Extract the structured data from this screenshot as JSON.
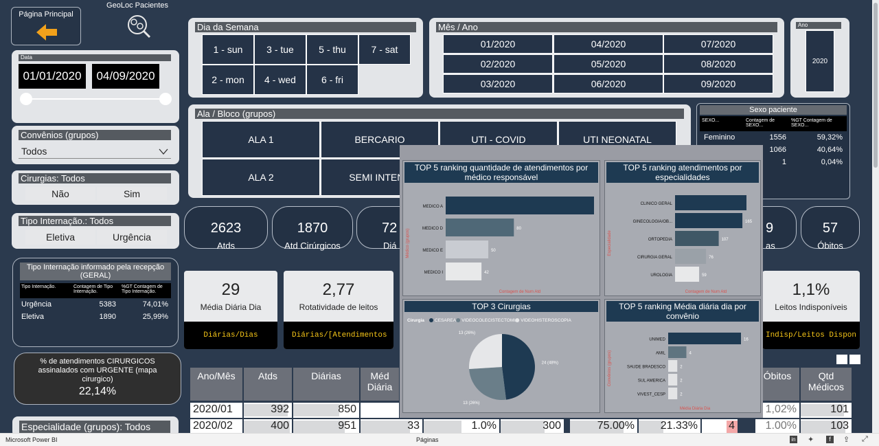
{
  "nav": {
    "home_label": "Página Principal",
    "geoloc_label": "GeoLoc Pacientes"
  },
  "date_filter": {
    "header": "Data",
    "start": "01/01/2020",
    "end": "04/09/2020"
  },
  "convenios": {
    "header": "Convênios (grupos)",
    "value": "Todos"
  },
  "cirurgias": {
    "header": "Cirurgias: Todos",
    "options": [
      "Não",
      "Sim"
    ]
  },
  "tipo_internacao": {
    "header": "Tipo Internação.: Todos",
    "options": [
      "Eletiva",
      "Urgência"
    ]
  },
  "tipo_recepcao": {
    "title": "Tipo Internação informado pela recepção (GERAL)",
    "columns": [
      "Tipo Internação.",
      "Contagem de Tipo Internação.",
      "%GT Contagem de Tipo Internação."
    ],
    "rows": [
      [
        "Urgência",
        "5383",
        "74,01%"
      ],
      [
        "Eletiva",
        "1890",
        "25,99%"
      ]
    ]
  },
  "pct_urgente": {
    "label": "% de atendimentos CIRURGICOS assinalados com URGENTE (mapa cirurgico)",
    "value": "22,14%"
  },
  "especialidade": {
    "header": "Especialidade (grupos): Todos"
  },
  "dia_semana": {
    "header": "Dia da Semana",
    "days": [
      "1 - sun",
      "3 - tue",
      "5 - thu",
      "7 - sat",
      "2 - mon",
      "4 - wed",
      "6 - fri"
    ]
  },
  "mes_ano": {
    "header": "Mês / Ano",
    "months": [
      "01/2020",
      "04/2020",
      "07/2020",
      "02/2020",
      "05/2020",
      "08/2020",
      "03/2020",
      "06/2020",
      "09/2020"
    ]
  },
  "ano": {
    "header": "Ano",
    "value": "2020"
  },
  "ala_bloco": {
    "header": "Ala / Bloco (grupos)",
    "items": [
      "ALA 1",
      "BERCARIO",
      "UTI - COVID",
      "UTI NEONATAL",
      "ALA 2",
      "SEMI INTENS"
    ]
  },
  "sexo": {
    "title": "Sexo paciente",
    "columns": [
      "SEXO...",
      "Contagem de SEXO...",
      "%GT Contagem de SEXO..."
    ],
    "rows": [
      [
        "Feminino",
        "1556",
        "59,32%"
      ],
      [
        "",
        "1066",
        "40,64%"
      ],
      [
        "",
        "1",
        "0,04%"
      ]
    ]
  },
  "kpis": [
    {
      "value": "2623",
      "label": "Atds"
    },
    {
      "value": "1870",
      "label": "Atd Cirúrgicos"
    },
    {
      "value": "72",
      "label": "Diá"
    },
    {
      "value": "9",
      "label": "as"
    },
    {
      "value": "57",
      "label": "Óbitos"
    }
  ],
  "kpis2": [
    {
      "value": "29",
      "label": "Média Diária Dia",
      "code": "Diárias/Dias"
    },
    {
      "value": "2,77",
      "label": "Rotatividade de leitos",
      "code": "Diárias/[Atendimentos"
    },
    {
      "value": "1,1%",
      "label": "Leitos Indisponíveis",
      "code": "Indisp/Leitos Dispon"
    }
  ],
  "grid": {
    "headers": [
      "Ano/Mês",
      "Atds",
      "Diárias",
      "Méd Diária",
      "Óbitos",
      "Qtd Médicos"
    ],
    "rows": [
      {
        "month": "2020/01",
        "atds": "392",
        "diarias": "850",
        "obitos_pct": "1,02%",
        "medicos": "101"
      },
      {
        "month": "2020/02",
        "atds": "400",
        "diarias": "951",
        "c1": "33",
        "c2": "1.0%",
        "c3": "300",
        "c4": "75.00%",
        "c5": "21.33%",
        "c6": "4",
        "obitos_pct": "1.00%",
        "medicos": "103"
      }
    ]
  },
  "chart_data": [
    {
      "type": "bar",
      "title": "TOP 5 ranking quantidade de atendimentos por médico responsável",
      "ylabel": "Médico (grupos)",
      "xlabel": "Contagem de Num Atd",
      "categories": [
        "MEDICO A",
        "MEDICO D",
        "MEDICO E",
        "MEDICO I"
      ],
      "values": [
        174,
        80,
        50,
        42
      ],
      "labels": [
        "",
        "80",
        "50",
        "42"
      ],
      "colors": [
        "#1e3a52",
        "#4f6877",
        "#c9ccd2",
        "#e8e9ea"
      ]
    },
    {
      "type": "bar",
      "title": "TOP 5 ranking atendimentos por especialidades",
      "ylabel": "Especialidade",
      "xlabel": "Contagem de Num Atd",
      "categories": [
        "CLINICO GERAL",
        "GINECOLOGIA/OB...",
        "ORTOPEDIA",
        "CIRURGIA GERAL",
        "UROLOGIA"
      ],
      "values": [
        175,
        165,
        107,
        76,
        59
      ],
      "labels": [
        "",
        "165",
        "107",
        "76",
        "59"
      ],
      "colors": [
        "#1e3a52",
        "#1e3a52",
        "#3f5766",
        "#9aa1a8",
        "#e8e9ea"
      ]
    },
    {
      "type": "pie",
      "title": "TOP 3 Cirurgias",
      "legend_title": "Cirurgia",
      "categories": [
        "CESAREA",
        "VIDEOCOLECISTECTOMIA",
        "VIDEOHISTEROSCOPIA"
      ],
      "values": [
        24,
        13,
        13
      ],
      "labels": [
        "24 (48%)",
        "13 (26%)",
        "13 (26%)"
      ],
      "colors": [
        "#1e3a52",
        "#6a7e89",
        "#e6e7e9"
      ]
    },
    {
      "type": "bar",
      "title": "TOP 5 ranking Média diária dia por convênio",
      "ylabel": "Convênios (grupos)",
      "xlabel": "Média Diária Dia",
      "categories": [
        "UNIMED",
        "AMIL",
        "SAUDE BRADESCO",
        "SUL AMERICA",
        "VIVEST_CESP"
      ],
      "values": [
        16,
        4,
        2,
        2,
        2
      ],
      "labels": [
        "16",
        "4",
        "2",
        "2",
        "2"
      ],
      "colors": [
        "#1e3a52",
        "#5f7480",
        "#e3e4e6",
        "#e3e4e6",
        "#e3e4e6"
      ]
    }
  ],
  "taskbar": {
    "app": "Microsoft Power BI",
    "pages": "Páginas"
  }
}
